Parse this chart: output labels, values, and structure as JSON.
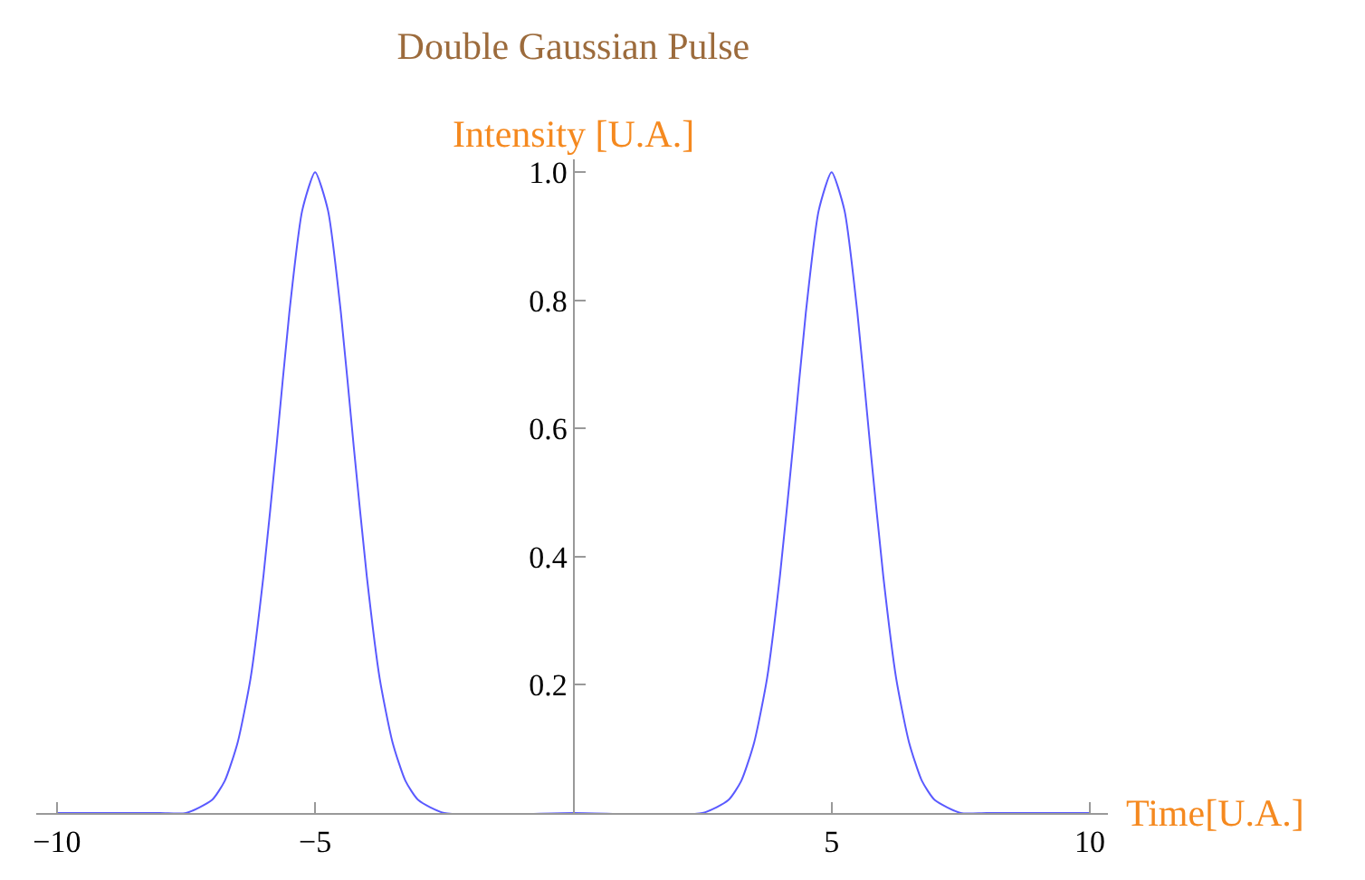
{
  "chart_data": {
    "type": "line",
    "title": "Double Gaussian Pulse",
    "xlabel": "Time[U.A.]",
    "ylabel": "Intensity [U.A.]",
    "x": [
      -10,
      -8,
      -7.5,
      -7,
      -6.75,
      -6.5,
      -6.25,
      -6,
      -5.75,
      -5.5,
      -5.25,
      -5,
      -4.75,
      -4.5,
      -4.25,
      -4,
      -3.75,
      -3.5,
      -3.25,
      -3,
      -2.5,
      0,
      2.5,
      3,
      3.25,
      3.5,
      3.75,
      4,
      4.25,
      4.5,
      4.75,
      5,
      5.25,
      5.5,
      5.75,
      6,
      6.25,
      6.5,
      6.75,
      7,
      7.5,
      8,
      10
    ],
    "series": [
      {
        "color": "#5a5aff",
        "values": [
          0,
          0,
          0,
          0.02,
          0.05,
          0.11,
          0.21,
          0.37,
          0.57,
          0.78,
          0.94,
          1,
          0.94,
          0.78,
          0.57,
          0.37,
          0.21,
          0.11,
          0.05,
          0.02,
          0,
          0,
          0,
          0.02,
          0.05,
          0.11,
          0.21,
          0.37,
          0.57,
          0.78,
          0.94,
          1,
          0.94,
          0.78,
          0.57,
          0.37,
          0.21,
          0.11,
          0.05,
          0.02,
          0,
          0,
          0
        ]
      }
    ],
    "xlim": [
      -10.4,
      10.35
    ],
    "ylim": [
      0,
      1.02
    ],
    "xticks": [
      {
        "value": -10,
        "label": "−10"
      },
      {
        "value": -5,
        "label": "−5"
      },
      5,
      10
    ],
    "yticks": [
      0.2,
      0.4,
      0.6,
      0.8,
      {
        "value": 1,
        "label": "1.0"
      }
    ],
    "marker": "none",
    "line_style": "solid"
  }
}
